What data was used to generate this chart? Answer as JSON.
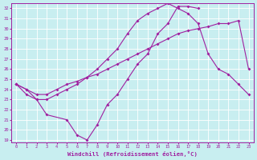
{
  "xlabel": "Windchill (Refroidissement éolien,°C)",
  "bg_color": "#c8eef0",
  "line_color": "#a020a0",
  "grid_color": "#ffffff",
  "line1_x": [
    0,
    1,
    2,
    3,
    4,
    5,
    6,
    7,
    8,
    9,
    10,
    11,
    12,
    13,
    14,
    15,
    16,
    17,
    18,
    19,
    20,
    21,
    22,
    23
  ],
  "line1_y": [
    24.5,
    24.0,
    23.5,
    23.5,
    24.0,
    24.5,
    24.8,
    25.2,
    25.5,
    26.0,
    26.5,
    27.0,
    27.5,
    28.0,
    28.5,
    29.0,
    29.5,
    29.8,
    30.0,
    30.2,
    30.5,
    30.5,
    30.8,
    26.0
  ],
  "line2_x": [
    0,
    1,
    2,
    3,
    4,
    5,
    6,
    7,
    8,
    9,
    10,
    11,
    12,
    13,
    14,
    15,
    16,
    17,
    18,
    19,
    20,
    21,
    22,
    23
  ],
  "line2_y": [
    24.5,
    24.0,
    23.0,
    23.0,
    23.5,
    24.0,
    24.5,
    25.2,
    26.0,
    27.0,
    28.0,
    29.5,
    30.8,
    31.5,
    32.0,
    32.5,
    32.0,
    31.5,
    30.5,
    27.5,
    26.0,
    25.5,
    24.5,
    23.5
  ],
  "line3_x": [
    0,
    1,
    2,
    3,
    5,
    6,
    7,
    8,
    9,
    10,
    11,
    12,
    13,
    14,
    15,
    16,
    17,
    18
  ],
  "line3_y": [
    24.5,
    23.5,
    23.0,
    21.5,
    21.0,
    19.5,
    19.0,
    20.5,
    22.5,
    23.5,
    25.0,
    26.5,
    27.5,
    29.5,
    30.5,
    32.2,
    32.2,
    32.0
  ],
  "ylim": [
    19,
    32
  ],
  "xlim": [
    0,
    23
  ],
  "yticks": [
    19,
    20,
    21,
    22,
    23,
    24,
    25,
    26,
    27,
    28,
    29,
    30,
    31,
    32
  ],
  "xticks": [
    0,
    1,
    2,
    3,
    4,
    5,
    6,
    7,
    8,
    9,
    10,
    11,
    12,
    13,
    14,
    15,
    16,
    17,
    18,
    19,
    20,
    21,
    22,
    23
  ]
}
